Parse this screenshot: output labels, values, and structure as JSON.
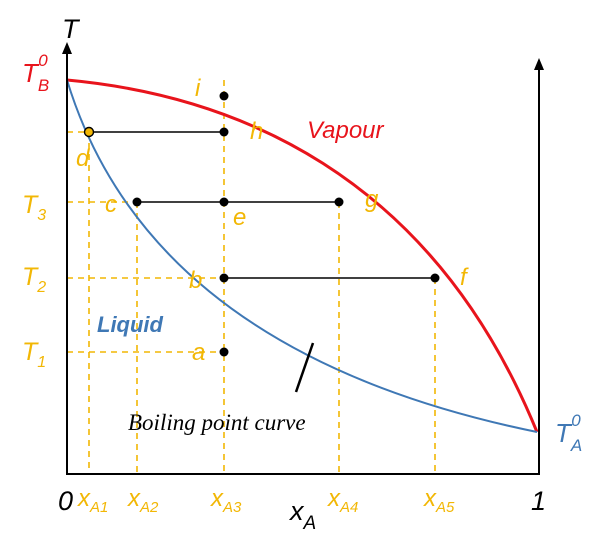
{
  "diagram": {
    "axis_y_label": "T",
    "axis_x_label_main": "x",
    "axis_x_label_sub": "A",
    "origin_label": "0",
    "end_label": "1",
    "tb0": {
      "main": "T",
      "sub": "B",
      "sup": "0"
    },
    "ta0": {
      "main": "T",
      "sub": "A",
      "sup": "0"
    },
    "vapour_label": "Vapour",
    "liquid_label": "Liquid",
    "curve_label": "Boiling point curve",
    "temperatures": [
      {
        "main": "T",
        "sub": "3"
      },
      {
        "main": "T",
        "sub": "2"
      },
      {
        "main": "T",
        "sub": "1"
      }
    ],
    "compositions": [
      {
        "main": "x",
        "sub": "A1"
      },
      {
        "main": "x",
        "sub": "A2"
      },
      {
        "main": "x",
        "sub": "A3"
      },
      {
        "main": "x",
        "sub": "A4"
      },
      {
        "main": "x",
        "sub": "A5"
      }
    ],
    "points": [
      "a",
      "b",
      "c",
      "d",
      "e",
      "f",
      "g",
      "h",
      "i"
    ]
  },
  "colors": {
    "vapour": "#e8141c",
    "liquid": "#3f78b5",
    "guide": "#f2b705",
    "axis": "#000000"
  }
}
